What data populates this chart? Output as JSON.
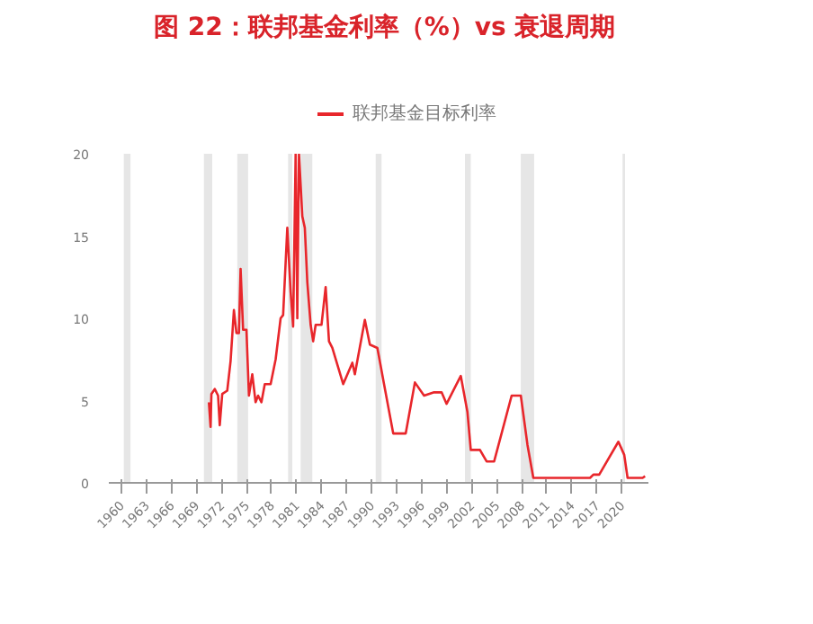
{
  "chart_data": {
    "type": "line",
    "title": "图 22：联邦基金利率（%）vs 衰退周期",
    "xlim": [
      1958.5,
      2023.2
    ],
    "ylim": [
      0,
      20
    ],
    "xticks": [
      1960,
      1963,
      1966,
      1969,
      1972,
      1975,
      1978,
      1981,
      1984,
      1987,
      1990,
      1993,
      1996,
      1999,
      2002,
      2005,
      2008,
      2011,
      2014,
      2017,
      2020
    ],
    "yticks": [
      0,
      5,
      10,
      15,
      20
    ],
    "grid": false,
    "legend": "top",
    "line_style": "solid",
    "marker": "none",
    "bands": [
      {
        "axis": "x",
        "from": 1960.3,
        "to": 1961.1,
        "color": "#e6e6e6"
      },
      {
        "axis": "x",
        "from": 1969.9,
        "to": 1970.9,
        "color": "#e6e6e6"
      },
      {
        "axis": "x",
        "from": 1973.9,
        "to": 1975.2,
        "color": "#e6e6e6"
      },
      {
        "axis": "x",
        "from": 1980.0,
        "to": 1980.5,
        "color": "#e6e6e6"
      },
      {
        "axis": "x",
        "from": 1981.5,
        "to": 1982.9,
        "color": "#e6e6e6"
      },
      {
        "axis": "x",
        "from": 1990.5,
        "to": 1991.2,
        "color": "#e6e6e6"
      },
      {
        "axis": "x",
        "from": 2001.2,
        "to": 2001.9,
        "color": "#e6e6e6"
      },
      {
        "axis": "x",
        "from": 2007.9,
        "to": 2009.5,
        "color": "#e6e6e6"
      },
      {
        "axis": "x",
        "from": 2020.1,
        "to": 2020.4,
        "color": "#e6e6e6"
      }
    ],
    "series": [
      {
        "name": "联邦基金目标利率",
        "color": "#e8262b",
        "x": [
          1970.5,
          1970.7,
          1970.8,
          1971.2,
          1971.6,
          1971.8,
          1972.1,
          1972.7,
          1973.1,
          1973.5,
          1973.8,
          1974.1,
          1974.3,
          1974.6,
          1975.0,
          1975.3,
          1975.7,
          1976.1,
          1976.4,
          1976.8,
          1977.2,
          1977.9,
          1978.5,
          1979.1,
          1979.4,
          1979.9,
          1980.3,
          1980.6,
          1980.9,
          1981.1,
          1981.3,
          1981.7,
          1982.0,
          1982.3,
          1982.7,
          1983.0,
          1983.3,
          1984.0,
          1984.5,
          1984.9,
          1985.3,
          1986.6,
          1987.7,
          1988.0,
          1989.2,
          1989.8,
          1990.7,
          1991.5,
          1992.6,
          1994.1,
          1995.2,
          1996.3,
          1997.5,
          1998.4,
          1999.0,
          2000.7,
          2001.5,
          2001.9,
          2003.0,
          2003.8,
          2004.7,
          2006.8,
          2007.9,
          2008.7,
          2009.4,
          2016.2,
          2016.6,
          2017.3,
          2019.6,
          2020.3,
          2020.7,
          2022.5,
          2022.8
        ],
        "values": [
          4.9,
          3.4,
          5.4,
          5.7,
          5.3,
          3.5,
          5.4,
          5.6,
          7.4,
          10.5,
          9.1,
          9.1,
          13,
          9.3,
          9.3,
          5.3,
          6.6,
          4.9,
          5.3,
          4.9,
          6.0,
          6.0,
          7.5,
          10,
          10.2,
          15.5,
          11.6,
          9.5,
          20,
          10,
          20,
          16.2,
          15.5,
          12.2,
          9.6,
          8.6,
          9.6,
          9.6,
          11.9,
          8.6,
          8.2,
          6.0,
          7.3,
          6.6,
          9.9,
          8.4,
          8.2,
          6.0,
          3.0,
          3.0,
          6.1,
          5.3,
          5.5,
          5.5,
          4.8,
          6.5,
          4.3,
          2.0,
          2.0,
          1.3,
          1.3,
          5.3,
          5.3,
          2.3,
          0.3,
          0.3,
          0.5,
          0.5,
          2.5,
          1.7,
          0.3,
          0.3,
          0.4
        ]
      }
    ]
  }
}
